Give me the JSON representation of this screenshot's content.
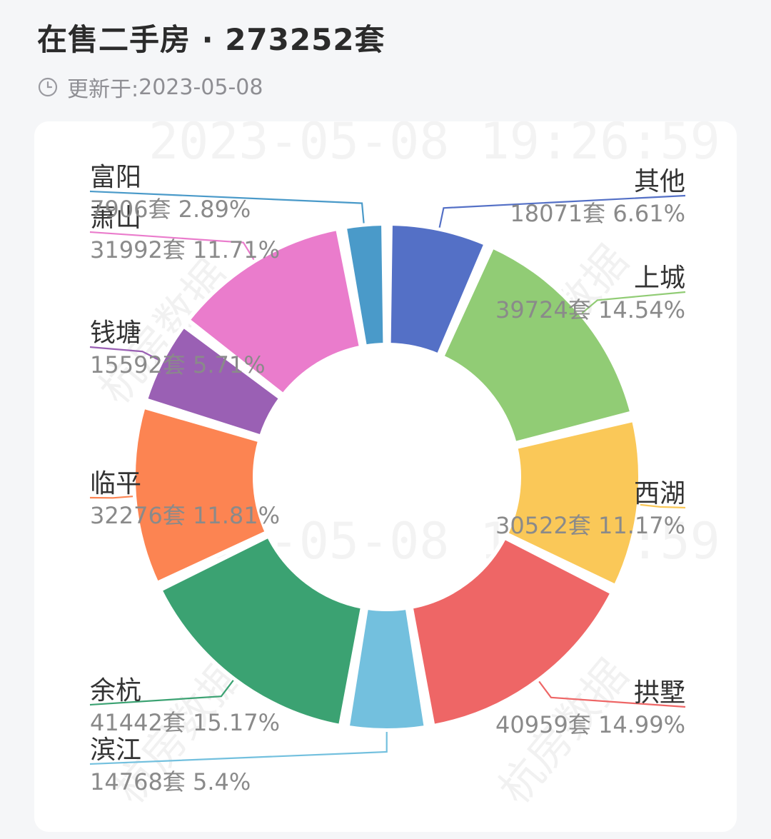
{
  "header": {
    "title": "在售二手房 · 273252套",
    "updated_label": "更新于:",
    "updated_date": "2023-05-08"
  },
  "watermark": {
    "timestamp": "2023-05-08 19:26:59",
    "brand": "杭房数据"
  },
  "chart_data": {
    "type": "pie",
    "donut": true,
    "total": 273252,
    "unit": "套",
    "categories": [
      "其他",
      "上城",
      "西湖",
      "拱墅",
      "滨江",
      "余杭",
      "临平",
      "钱塘",
      "萧山",
      "富阳"
    ],
    "values": [
      18071,
      39724,
      30522,
      40959,
      14768,
      41442,
      32276,
      15592,
      31992,
      7906
    ],
    "percent_labels": [
      "6.61%",
      "14.54%",
      "11.17%",
      "14.99%",
      "5.4%",
      "15.17%",
      "11.81%",
      "5.71%",
      "11.71%",
      "2.89%"
    ],
    "colors": [
      "#5470c6",
      "#91cc75",
      "#fac858",
      "#ee6666",
      "#73c0de",
      "#3ba272",
      "#fc8452",
      "#9a60b4",
      "#ea7ccc",
      "#4a9ac9"
    ],
    "start_angle_deg": 0,
    "direction": "clockwise",
    "legend": "none"
  }
}
